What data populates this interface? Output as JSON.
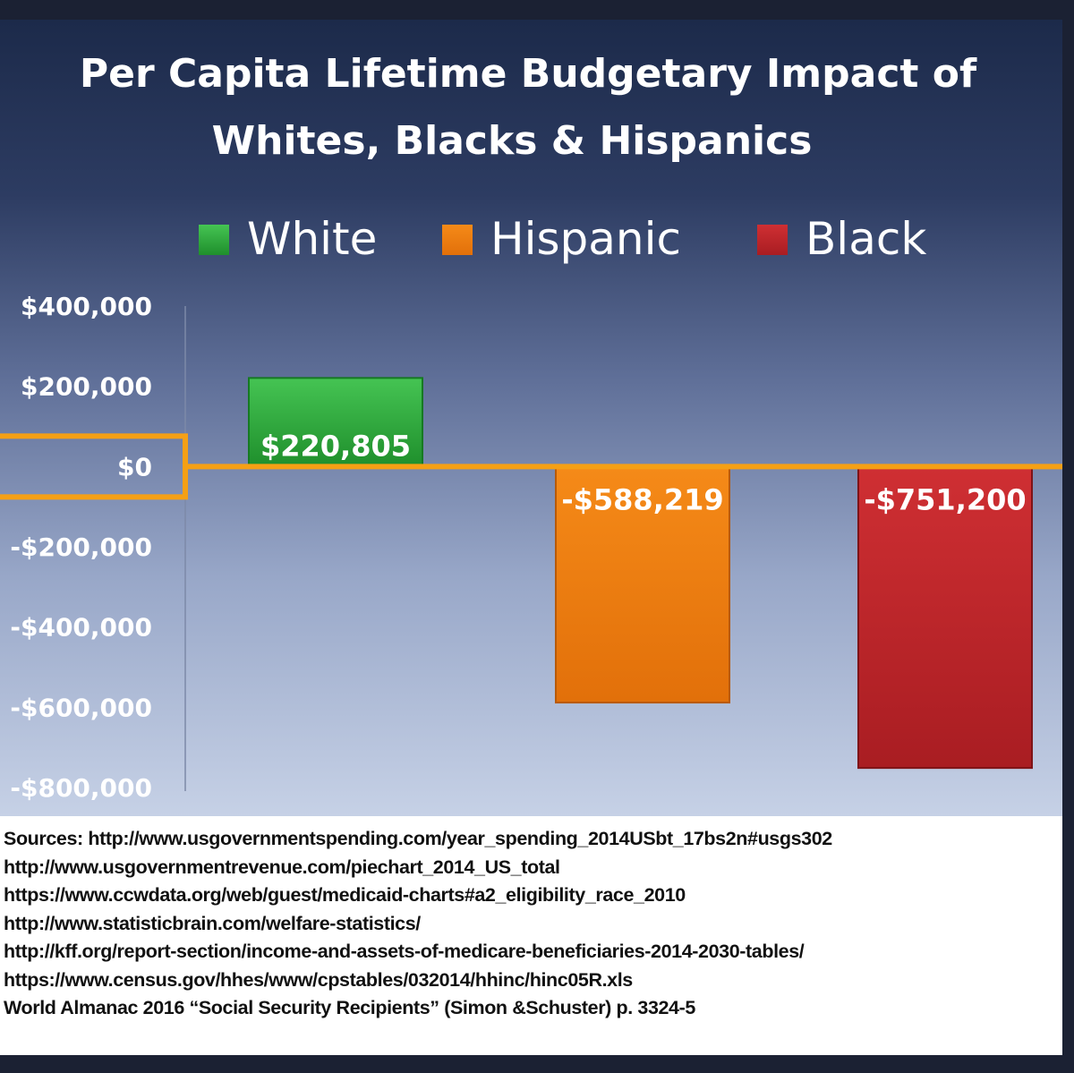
{
  "chart_data": {
    "type": "bar",
    "title_lines": [
      "Per Capita Lifetime Budgetary Impact of",
      "Whites, Blacks & Hispanics"
    ],
    "legend": [
      {
        "name": "White",
        "color": "#2eaa3c"
      },
      {
        "name": "Hispanic",
        "color": "#f07f10"
      },
      {
        "name": "Black",
        "color": "#c0262b"
      }
    ],
    "categories": [
      "White",
      "Hispanic",
      "Black"
    ],
    "values": [
      220805,
      -588219,
      -751200
    ],
    "value_labels": [
      "$220,805",
      "-$588,219",
      "-$751,200"
    ],
    "bar_colors": [
      "#2eaa3c",
      "#f07f10",
      "#c0262b"
    ],
    "bar_colors_dark": [
      "#1d8a2b",
      "#c96106",
      "#8e1418"
    ],
    "ylim": [
      -800000,
      400000
    ],
    "yticks": [
      400000,
      200000,
      0,
      -200000,
      -400000,
      -600000,
      -800000
    ],
    "ytick_labels": [
      "$400,000",
      "$200,000",
      "$0",
      "-$200,000",
      "-$400,000",
      "-$600,000",
      "-$800,000"
    ],
    "zero_line_color": "#f5a015",
    "highlighted_tick": "$0",
    "xlabel": "",
    "ylabel": ""
  },
  "sources": [
    "Sources: http://www.usgovernmentspending.com/year_spending_2014USbt_17bs2n#usgs302",
    "http://www.usgovernmentrevenue.com/piechart_2014_US_total",
    "https://www.ccwdata.org/web/guest/medicaid-charts#a2_eligibility_race_2010",
    "http://www.statisticbrain.com/welfare-statistics/",
    "http://kff.org/report-section/income-and-assets-of-medicare-beneficiaries-2014-2030-tables/",
    "https://www.census.gov/hhes/www/cpstables/032014/hhinc/hinc05R.xls",
    "World Almanac 2016 “Social Security Recipients” (Simon &Schuster) p. 3324-5"
  ]
}
